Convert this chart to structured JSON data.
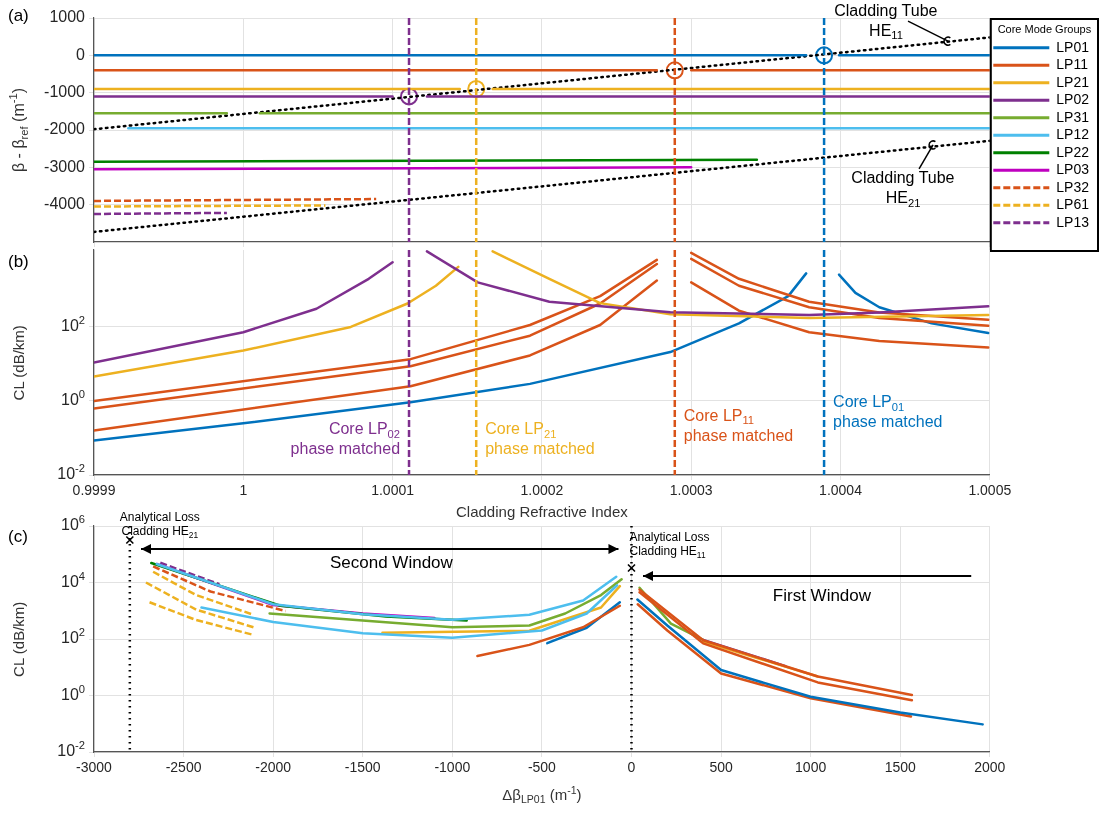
{
  "chart_data": [
    {
      "type": "line",
      "title": "(a)",
      "ylabel": "β - β$_{ref}$ (m$^{-1}$)",
      "xlim": [
        0.9999,
        1.0005
      ],
      "xticks": [
        0.9999,
        1,
        1.0001,
        1.0002,
        1.0003,
        1.0004,
        1.0005
      ],
      "ylim": [
        -5000,
        1000
      ],
      "yticks": [
        -4000,
        -3000,
        -2000,
        -1000,
        0,
        1000
      ],
      "grid": true,
      "tick_labels": "y",
      "legend": "right",
      "legend_title": "Core Mode Groups",
      "series": [
        {
          "name": "LP01",
          "color": "#0072bd",
          "x": [
            0.9999,
            1.000377,
            1.000388,
            1.000399,
            1.0005
          ],
          "values": [
            0,
            0,
            null,
            0,
            0
          ]
        },
        {
          "name": "LP11",
          "color": "#d95319",
          "x": [
            0.9999,
            1.000277,
            1.000289,
            1.0003,
            1.0005
          ],
          "values": [
            -400,
            -400,
            null,
            -400,
            -400
          ]
        },
        {
          "name": "LP21",
          "color": "#edb120",
          "x": [
            0.9999,
            1.000145,
            1.000156,
            1.000167,
            1.0005
          ],
          "values": [
            -900,
            -900,
            null,
            -900,
            -900
          ]
        },
        {
          "name": "LP02",
          "color": "#7e2f8e",
          "x": [
            0.9999,
            1.0001,
            1.000111,
            1.000123,
            1.0005
          ],
          "values": [
            -1100,
            -1100,
            null,
            -1100,
            -1100
          ]
        },
        {
          "name": "LP31",
          "color": "#77ac30",
          "x": [
            0.9999,
            0.999989,
            1,
            1.000011,
            1.0005
          ],
          "values": [
            -1550,
            -1550,
            null,
            -1550,
            -1550
          ]
        },
        {
          "name": "LP12",
          "color": "#4dbeee",
          "x": [
            0.999923,
            1.0005
          ],
          "values": [
            -1950,
            -1950
          ]
        },
        {
          "name": "LP22",
          "color": "#008000",
          "x": [
            0.9999,
            1.000344
          ],
          "values": [
            -2850,
            -2800
          ]
        },
        {
          "name": "LP03",
          "color": "#bf00bf",
          "x": [
            0.9999,
            1.0003
          ],
          "values": [
            -3050,
            -3000
          ]
        },
        {
          "name": "LP32",
          "color": "#d95319",
          "line_style": "dashed",
          "x": [
            0.9999,
            1.000089
          ],
          "values": [
            -3900,
            -3850
          ]
        },
        {
          "name": "LP61",
          "color": "#edb120",
          "line_style": "dashed",
          "x": [
            0.9999,
            1.000055
          ],
          "values": [
            -4050,
            -4020
          ]
        },
        {
          "name": "LP13",
          "color": "#7e2f8e",
          "line_style": "dashed",
          "x": [
            0.9999,
            0.999989
          ],
          "values": [
            -4250,
            -4220
          ]
        },
        {
          "color": "#000000",
          "line_style": "dotted",
          "x": [
            0.9999,
            1.0005
          ],
          "values": [
            -1980,
            480
          ]
        },
        {
          "color": "#000000",
          "line_style": "dotted",
          "x": [
            0.9999,
            1.0005
          ],
          "values": [
            -4730,
            -2290
          ]
        },
        {
          "type": "scatter",
          "marker": "circle",
          "color": "#7e2f8e",
          "x": [
            1.000111
          ],
          "values": [
            -1100
          ]
        },
        {
          "type": "scatter",
          "marker": "circle",
          "color": "#edb120",
          "x": [
            1.000156
          ],
          "values": [
            -900
          ]
        },
        {
          "type": "scatter",
          "marker": "circle",
          "color": "#d95319",
          "x": [
            1.000289
          ],
          "values": [
            -400
          ]
        },
        {
          "type": "scatter",
          "marker": "circle",
          "color": "#0072bd",
          "x": [
            1.000389
          ],
          "values": [
            0
          ]
        }
      ],
      "ref_lines": [
        {
          "axis": "x",
          "value": 1.000111,
          "color": "#7e2f8e",
          "line_style": "dashed"
        },
        {
          "axis": "x",
          "value": 1.000156,
          "color": "#edb120",
          "line_style": "dashed"
        },
        {
          "axis": "x",
          "value": 1.000289,
          "color": "#d95319",
          "line_style": "dashed"
        },
        {
          "axis": "x",
          "value": 1.000389,
          "color": "#0072bd",
          "line_style": "dashed"
        }
      ],
      "annotations": [
        {
          "text": "Cladding Tube HE$_{11}$",
          "x": 1.000472,
          "y": 380
        },
        {
          "text": "Cladding Tube HE$_{21}$",
          "x": 1.000462,
          "y": -2400
        }
      ]
    },
    {
      "type": "line",
      "title": "(b)",
      "xlabel": "Cladding Refractive Index",
      "ylabel": "CL (dB/km)",
      "log": "y",
      "xlim": [
        0.9999,
        1.0005
      ],
      "xticks": [
        0.9999,
        1,
        1.0001,
        1.0002,
        1.0003,
        1.0004,
        1.0005
      ],
      "ylim": [
        0.01,
        12000
      ],
      "yticks": [
        {
          "value": 0.01,
          "label": "10$^{-2}$"
        },
        {
          "value": 1,
          "label": "10$^{0}$"
        },
        {
          "value": 100,
          "label": "10$^{2}$"
        }
      ],
      "grid": true,
      "series": [
        {
          "color": "#7e2f8e",
          "x": [
            0.9999,
            1,
            1.000049,
            1.000084,
            1.0001
          ],
          "values": [
            11,
            72,
            310,
            2000,
            5600
          ]
        },
        {
          "color": "#7e2f8e",
          "x": [
            1.000123,
            1.000157,
            1.000205,
            1.000286,
            1.000379,
            1.000426,
            1.000499
          ],
          "values": [
            11000,
            1600,
            480,
            250,
            210,
            245,
            360
          ]
        },
        {
          "color": "#edb120",
          "x": [
            0.9999,
            1,
            1.000072,
            1.00011,
            1.000129,
            1.000144
          ],
          "values": [
            4.6,
            23,
            100,
            430,
            1300,
            4200
          ]
        },
        {
          "color": "#edb120",
          "x": [
            1.000167,
            1.000205,
            1.000239,
            1.000286,
            1.000379,
            1.000499
          ],
          "values": [
            11000,
            2000,
            440,
            220,
            175,
            210
          ]
        },
        {
          "color": "#d95319",
          "x": [
            0.9999,
            1.000112,
            1.000192,
            1.000239,
            1.000277
          ],
          "values": [
            1,
            13.5,
            113,
            680,
            6500
          ]
        },
        {
          "color": "#d95319",
          "x": [
            0.9999,
            1.000112,
            1.000192,
            1.000239,
            1.000277
          ],
          "values": [
            0.63,
            8.7,
            58,
            430,
            5000
          ]
        },
        {
          "color": "#d95319",
          "x": [
            0.9999,
            1.000112,
            1.000192,
            1.000239,
            1.000277
          ],
          "values": [
            0.16,
            2.5,
            17,
            113,
            1800
          ]
        },
        {
          "color": "#d95319",
          "x": [
            1.0003,
            1.000332,
            1.000379,
            1.000426,
            1.000499
          ],
          "values": [
            10000,
            2000,
            480,
            245,
            157
          ]
        },
        {
          "color": "#d95319",
          "x": [
            1.0003,
            1.000332,
            1.000379,
            1.000426,
            1.000499
          ],
          "values": [
            6900,
            1300,
            340,
            175,
            107
          ]
        },
        {
          "color": "#d95319",
          "x": [
            1.0003,
            1.000332,
            1.000379,
            1.000426,
            1.000499
          ],
          "values": [
            1600,
            275,
            72,
            42,
            28
          ]
        },
        {
          "color": "#0072bd",
          "x": [
            0.9999,
            1,
            1.000112,
            1.000192,
            1.000286,
            1.000332,
            1.000365,
            1.000377
          ],
          "values": [
            0.086,
            0.25,
            0.93,
            2.9,
            21,
            125,
            680,
            2800
          ]
        },
        {
          "color": "#0072bd",
          "x": [
            1.000399,
            1.00041,
            1.000426,
            1.000461,
            1.000499
          ],
          "values": [
            2600,
            830,
            340,
            125,
            69
          ]
        }
      ],
      "ref_lines": [
        {
          "axis": "x",
          "value": 1.000111,
          "color": "#7e2f8e",
          "line_style": "dashed",
          "label": "Core LP$_{02}$ phase matched"
        },
        {
          "axis": "x",
          "value": 1.000156,
          "color": "#edb120",
          "line_style": "dashed",
          "label": "Core LP$_{21}$ phase matched"
        },
        {
          "axis": "x",
          "value": 1.000289,
          "color": "#d95319",
          "line_style": "dashed",
          "label": "Core LP$_{11}$ phase matched"
        },
        {
          "axis": "x",
          "value": 1.000389,
          "color": "#0072bd",
          "line_style": "dashed",
          "label": "Core LP$_{01}$ phase matched"
        }
      ]
    },
    {
      "type": "line",
      "title": "(c)",
      "xlabel": "Δβ$_{LP01}$ (m$^{-1}$)",
      "ylabel": "CL (dB/km)",
      "log": "y",
      "xlim": [
        -3000,
        2000
      ],
      "xticks": [
        -3000,
        -2500,
        -2000,
        -1500,
        -1000,
        -500,
        0,
        500,
        1000,
        1500,
        2000
      ],
      "ylim": [
        0.01,
        1000000
      ],
      "yticks": [
        {
          "value": 0.01,
          "label": "10$^{-2}$"
        },
        {
          "value": 1,
          "label": "10$^{0}$"
        },
        {
          "value": 100,
          "label": "10$^{2}$"
        },
        {
          "value": 10000,
          "label": "10$^{4}$"
        },
        {
          "value": 1000000,
          "label": "10$^{6}$"
        }
      ],
      "grid": true,
      "series": [
        {
          "color": "#4dbeee",
          "x": [
            -2400,
            -2000,
            -1500,
            -1000,
            -500,
            -250,
            -80
          ],
          "values": [
            1300,
            400,
            160,
            110,
            200,
            800,
            8000
          ]
        },
        {
          "color": "#4dbeee",
          "x": [
            -2650,
            -2000,
            -1500,
            -1000,
            -570,
            -270,
            -85
          ],
          "values": [
            45000,
            1700,
            750,
            480,
            720,
            2300,
            16000
          ]
        },
        {
          "color": "#edb120",
          "x": [
            -1390,
            -570,
            -170,
            -65
          ],
          "values": [
            165,
            195,
            1300,
            7400
          ]
        },
        {
          "color": "#77ac30",
          "x": [
            -2020,
            -1000,
            -570,
            -370,
            -170,
            -55
          ],
          "values": [
            800,
            260,
            300,
            800,
            3600,
            13000
          ]
        },
        {
          "color": "#008000",
          "x": [
            -2680,
            -1960,
            -1370,
            -920
          ],
          "values": [
            49000,
            1500,
            630,
            450
          ]
        },
        {
          "color": "#bf00bf",
          "x": [
            -2650,
            -2000,
            -1500,
            -1100
          ],
          "values": [
            45000,
            1600,
            800,
            550
          ]
        },
        {
          "color": "#d95319",
          "line_style": "dashed",
          "x": [
            -2670,
            -2350,
            -1930
          ],
          "values": [
            37000,
            4800,
            980
          ]
        },
        {
          "color": "#edb120",
          "line_style": "dashed",
          "x": [
            -2670,
            -2430,
            -2110
          ],
          "values": [
            24000,
            3600,
            720
          ]
        },
        {
          "color": "#edb120",
          "line_style": "dashed",
          "x": [
            -2710,
            -2430,
            -2110
          ],
          "values": [
            10000,
            1100,
            260
          ]
        },
        {
          "color": "#edb120",
          "line_style": "dashed",
          "x": [
            -2690,
            -2430,
            -2120
          ],
          "values": [
            2000,
            470,
            145
          ]
        },
        {
          "color": "#7e2f8e",
          "line_style": "dashed",
          "x": [
            -2630,
            -2300
          ],
          "values": [
            50000,
            8700
          ]
        },
        {
          "color": "#d95319",
          "x": [
            -860,
            -570,
            -270,
            -65
          ],
          "values": [
            25,
            62,
            260,
            1500
          ]
        },
        {
          "color": "#0072bd",
          "x": [
            -470,
            -250,
            -65
          ],
          "values": [
            71,
            250,
            2000
          ]
        },
        {
          "color": "#0072bd",
          "x": [
            33,
            200,
            500,
            1000,
            1500,
            1960
          ],
          "values": [
            2500,
            300,
            8,
            0.9,
            0.25,
            0.095
          ]
        },
        {
          "color": "#d95319",
          "x": [
            35,
            200,
            500,
            1000,
            1560
          ],
          "values": [
            1700,
            200,
            6,
            0.8,
            0.18
          ]
        },
        {
          "color": "#d95319",
          "x": [
            45,
            400,
            1040,
            1565
          ],
          "values": [
            4500,
            70,
            2.9,
            0.68
          ]
        },
        {
          "color": "#d95319",
          "x": [
            45,
            400,
            1040,
            1565
          ],
          "values": [
            5600,
            90,
            4.7,
            1.05
          ]
        },
        {
          "color": "#edb120",
          "x": [
            400,
            1040
          ],
          "values": [
            81,
            4.7
          ]
        },
        {
          "color": "#7e2f8e",
          "x": [
            400,
            860
          ],
          "values": [
            93,
            11
          ]
        },
        {
          "color": "#77ac30",
          "x": [
            45,
            220,
            400
          ],
          "values": [
            6500,
            350,
            93
          ]
        }
      ],
      "ref_lines": [
        {
          "axis": "x",
          "value": -2800,
          "color": "#000000",
          "line_style": "dotted",
          "label": "Analytical Loss Cladding HE$_{21}$"
        },
        {
          "axis": "x",
          "value": 0,
          "color": "#000000",
          "line_style": "dotted",
          "label": "Analytical Loss Cladding HE$_{11}$"
        }
      ],
      "annotations": [
        "Second Window",
        "First Window"
      ]
    }
  ]
}
